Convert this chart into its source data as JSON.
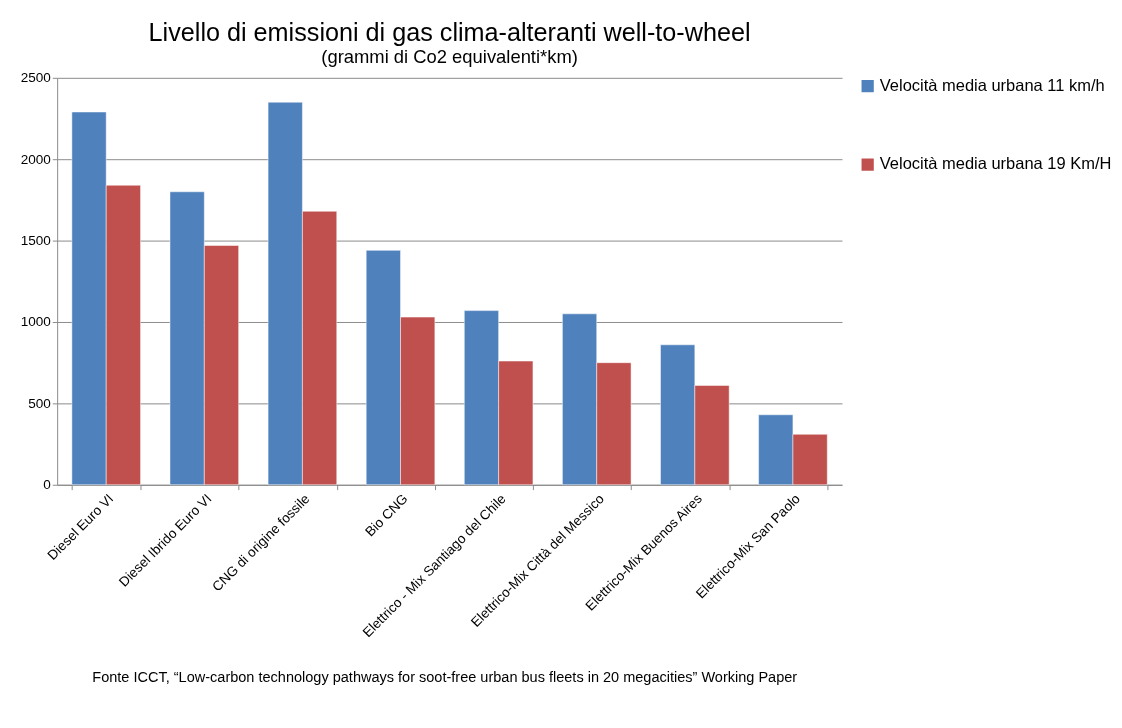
{
  "chart_data": {
    "type": "bar",
    "title": "Livello di emissioni di gas clima-alteranti well-to-wheel",
    "subtitle": "(grammi di Co2 equivalenti*km)",
    "categories": [
      "Diesel Euro VI",
      "Diesel Ibrido Euro VI",
      "CNG di origine fossile",
      "Bio CNG",
      "Elettrico - Mix Santiago del Chile",
      "Elettrico-Mix Città del Messico",
      "Elettrico-Mix Buenos Aires",
      "Elettrico-Mix San Paolo"
    ],
    "series": [
      {
        "name": "Velocità media urbana 11 km/h",
        "color": "#4f81bd",
        "values": [
          2290,
          1800,
          2350,
          1440,
          1070,
          1050,
          860,
          430
        ]
      },
      {
        "name": "Velocità media urbana 19 Km/H",
        "color": "#c0504d",
        "values": [
          1840,
          1470,
          1680,
          1030,
          760,
          750,
          610,
          310
        ]
      }
    ],
    "ylim": [
      0,
      2500
    ],
    "yticks": [
      0,
      500,
      1000,
      1500,
      2000,
      2500
    ],
    "grid": "y",
    "legend": "right",
    "annotations": [
      "Fonte ICCT, “Low-carbon technology pathways for soot-free urban bus fleets in 20 megacities” Working Paper"
    ]
  }
}
